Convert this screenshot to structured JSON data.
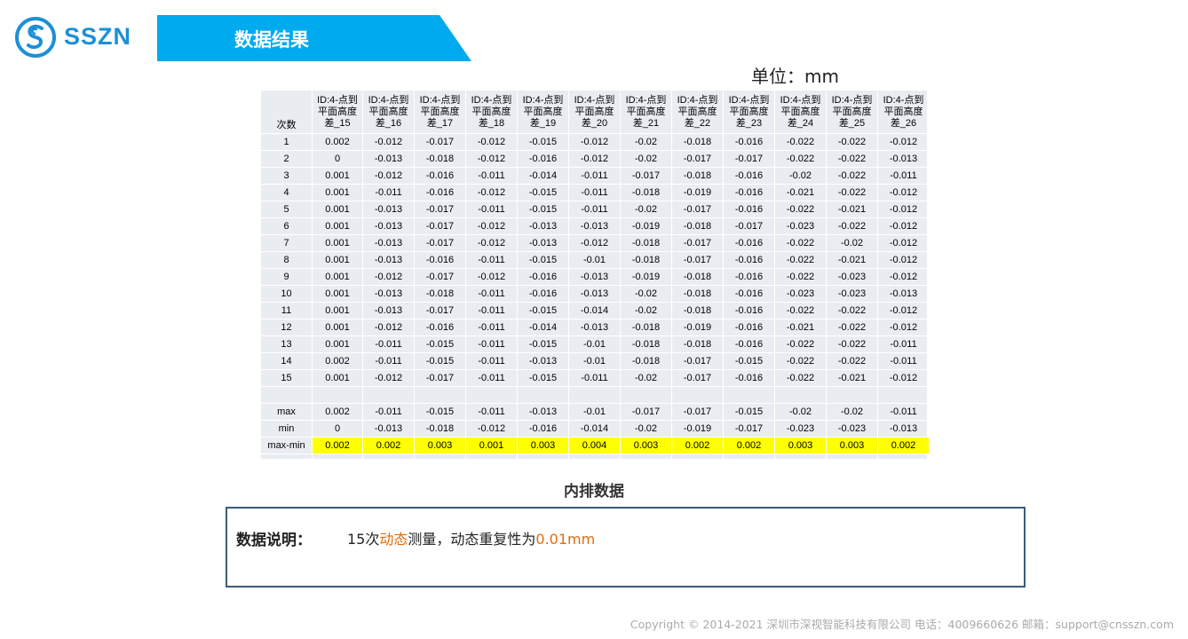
{
  "brand": {
    "name": "SSZN",
    "color": "#1e8fd6"
  },
  "header": {
    "title": "数据结果",
    "bar_color": "#00aaee"
  },
  "unit": "单位：mm",
  "table": {
    "corner": "次数",
    "headers": [
      [
        "ID:4-点到",
        "平面高度",
        "差_15"
      ],
      [
        "ID:4-点到",
        "平面高度",
        "差_16"
      ],
      [
        "ID:4-点到",
        "平面高度",
        "差_17"
      ],
      [
        "ID:4-点到",
        "平面高度",
        "差_18"
      ],
      [
        "ID:4-点到",
        "平面高度",
        "差_19"
      ],
      [
        "ID:4-点到",
        "平面高度",
        "差_20"
      ],
      [
        "ID:4-点到",
        "平面高度",
        "差_21"
      ],
      [
        "ID:4-点到",
        "平面高度",
        "差_22"
      ],
      [
        "ID:4-点到",
        "平面高度",
        "差_23"
      ],
      [
        "ID:4-点到",
        "平面高度",
        "差_24"
      ],
      [
        "ID:4-点到",
        "平面高度",
        "差_25"
      ],
      [
        "ID:4-点到",
        "平面高度",
        "差_26"
      ]
    ],
    "rows": [
      {
        "label": "1",
        "values": [
          "0.002",
          "-0.012",
          "-0.017",
          "-0.012",
          "-0.015",
          "-0.012",
          "-0.02",
          "-0.018",
          "-0.016",
          "-0.022",
          "-0.022",
          "-0.012"
        ]
      },
      {
        "label": "2",
        "values": [
          "0",
          "-0.013",
          "-0.018",
          "-0.012",
          "-0.016",
          "-0.012",
          "-0.02",
          "-0.017",
          "-0.017",
          "-0.022",
          "-0.022",
          "-0.013"
        ]
      },
      {
        "label": "3",
        "values": [
          "0.001",
          "-0.012",
          "-0.016",
          "-0.011",
          "-0.014",
          "-0.011",
          "-0.017",
          "-0.018",
          "-0.016",
          "-0.02",
          "-0.022",
          "-0.011"
        ]
      },
      {
        "label": "4",
        "values": [
          "0.001",
          "-0.011",
          "-0.016",
          "-0.012",
          "-0.015",
          "-0.011",
          "-0.018",
          "-0.019",
          "-0.016",
          "-0.021",
          "-0.022",
          "-0.012"
        ]
      },
      {
        "label": "5",
        "values": [
          "0.001",
          "-0.013",
          "-0.017",
          "-0.011",
          "-0.015",
          "-0.011",
          "-0.02",
          "-0.017",
          "-0.016",
          "-0.022",
          "-0.021",
          "-0.012"
        ]
      },
      {
        "label": "6",
        "values": [
          "0.001",
          "-0.013",
          "-0.017",
          "-0.012",
          "-0.013",
          "-0.013",
          "-0.019",
          "-0.018",
          "-0.017",
          "-0.023",
          "-0.022",
          "-0.012"
        ]
      },
      {
        "label": "7",
        "values": [
          "0.001",
          "-0.013",
          "-0.017",
          "-0.012",
          "-0.013",
          "-0.012",
          "-0.018",
          "-0.017",
          "-0.016",
          "-0.022",
          "-0.02",
          "-0.012"
        ]
      },
      {
        "label": "8",
        "values": [
          "0.001",
          "-0.013",
          "-0.016",
          "-0.011",
          "-0.015",
          "-0.01",
          "-0.018",
          "-0.017",
          "-0.016",
          "-0.022",
          "-0.021",
          "-0.012"
        ]
      },
      {
        "label": "9",
        "values": [
          "0.001",
          "-0.012",
          "-0.017",
          "-0.012",
          "-0.016",
          "-0.013",
          "-0.019",
          "-0.018",
          "-0.016",
          "-0.022",
          "-0.023",
          "-0.012"
        ]
      },
      {
        "label": "10",
        "values": [
          "0.001",
          "-0.013",
          "-0.018",
          "-0.011",
          "-0.016",
          "-0.013",
          "-0.02",
          "-0.018",
          "-0.016",
          "-0.023",
          "-0.023",
          "-0.013"
        ]
      },
      {
        "label": "11",
        "values": [
          "0.001",
          "-0.013",
          "-0.017",
          "-0.011",
          "-0.015",
          "-0.014",
          "-0.02",
          "-0.018",
          "-0.016",
          "-0.022",
          "-0.022",
          "-0.012"
        ]
      },
      {
        "label": "12",
        "values": [
          "0.001",
          "-0.012",
          "-0.016",
          "-0.011",
          "-0.014",
          "-0.013",
          "-0.018",
          "-0.019",
          "-0.016",
          "-0.021",
          "-0.022",
          "-0.012"
        ]
      },
      {
        "label": "13",
        "values": [
          "0.001",
          "-0.011",
          "-0.015",
          "-0.011",
          "-0.015",
          "-0.01",
          "-0.018",
          "-0.018",
          "-0.016",
          "-0.022",
          "-0.022",
          "-0.011"
        ]
      },
      {
        "label": "14",
        "values": [
          "0.002",
          "-0.011",
          "-0.015",
          "-0.011",
          "-0.013",
          "-0.01",
          "-0.018",
          "-0.017",
          "-0.015",
          "-0.022",
          "-0.022",
          "-0.011"
        ]
      },
      {
        "label": "15",
        "values": [
          "0.001",
          "-0.012",
          "-0.017",
          "-0.011",
          "-0.015",
          "-0.011",
          "-0.02",
          "-0.017",
          "-0.016",
          "-0.022",
          "-0.021",
          "-0.012"
        ]
      }
    ],
    "max": {
      "label": "max",
      "values": [
        "0.002",
        "-0.011",
        "-0.015",
        "-0.011",
        "-0.013",
        "-0.01",
        "-0.017",
        "-0.017",
        "-0.015",
        "-0.02",
        "-0.02",
        "-0.011"
      ]
    },
    "min": {
      "label": "min",
      "values": [
        "0",
        "-0.013",
        "-0.018",
        "-0.012",
        "-0.016",
        "-0.014",
        "-0.02",
        "-0.019",
        "-0.017",
        "-0.023",
        "-0.023",
        "-0.013"
      ]
    },
    "range": {
      "label": "max-min",
      "values": [
        "0.002",
        "0.002",
        "0.003",
        "0.001",
        "0.003",
        "0.004",
        "0.003",
        "0.002",
        "0.002",
        "0.003",
        "0.003",
        "0.002"
      ]
    },
    "highlight_color": "#ffff00"
  },
  "caption": "内排数据",
  "note": {
    "label": "数据说明：",
    "parts": [
      {
        "text": "15次",
        "highlight": false
      },
      {
        "text": "动态",
        "highlight": true
      },
      {
        "text": "测量，动态重复性为",
        "highlight": false
      },
      {
        "text": "0.01mm",
        "highlight": true
      }
    ],
    "highlight_color": "#e36c09"
  },
  "footer": "Copyright © 2014-2021 深圳市深视智能科技有限公司  电话：4009660626 邮箱：support@cnsszn.com"
}
